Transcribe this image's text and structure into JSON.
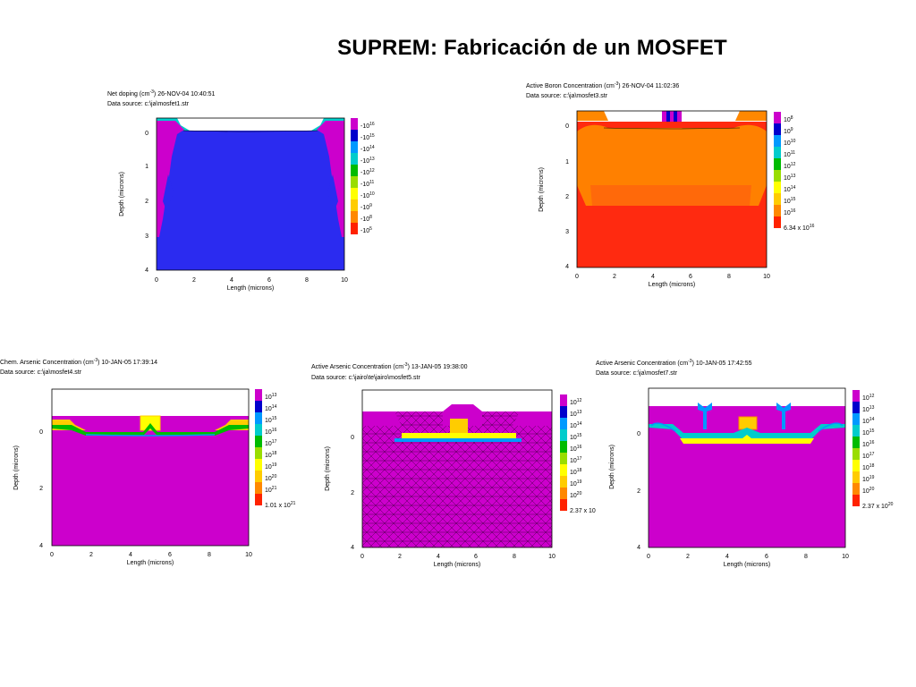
{
  "page": {
    "title": "SUPREM: Fabricación de un MOSFET"
  },
  "axis_labels": {
    "x": "Length (microns)",
    "y": "Depth (microns)"
  },
  "panels": [
    {
      "header_pre": "Net doping (cm",
      "header_exp": "-3",
      "header_post": ") 26-NOV-04 10:40:51",
      "source": "Data source: c:\\ja\\mosfet1.str",
      "x_ticks": [
        "0",
        "2",
        "4",
        "6",
        "8",
        "10"
      ],
      "y_ticks": [
        "0",
        "1",
        "2",
        "3",
        "4"
      ],
      "legend": [
        {
          "base": "-10",
          "exp": "16",
          "color": "#cc00cc"
        },
        {
          "base": "-10",
          "exp": "15",
          "color": "#0000cc"
        },
        {
          "base": "-10",
          "exp": "14",
          "color": "#0099ff"
        },
        {
          "base": "-10",
          "exp": "13",
          "color": "#00cccc"
        },
        {
          "base": "-10",
          "exp": "12",
          "color": "#00bb00"
        },
        {
          "base": "-10",
          "exp": "11",
          "color": "#99dd00"
        },
        {
          "base": "-10",
          "exp": "10",
          "color": "#ffff00"
        },
        {
          "base": "-10",
          "exp": "9",
          "color": "#ffcc00"
        },
        {
          "base": "-10",
          "exp": "8",
          "color": "#ff8800"
        },
        {
          "base": "-10",
          "exp": "5",
          "color": "#ff2200"
        }
      ],
      "legend_tail": null
    },
    {
      "header_pre": "Active Boron Concentration (cm",
      "header_exp": "-3",
      "header_post": ") 26-NOV-04 11:02:36",
      "source": "Data source: c:\\ja\\mosfet3.str",
      "x_ticks": [
        "0",
        "2",
        "4",
        "6",
        "8",
        "10"
      ],
      "y_ticks": [
        "0",
        "1",
        "2",
        "3",
        "4"
      ],
      "legend": [
        {
          "base": "10",
          "exp": "8",
          "color": "#cc00cc"
        },
        {
          "base": "10",
          "exp": "9",
          "color": "#0000cc"
        },
        {
          "base": "10",
          "exp": "10",
          "color": "#0099ff"
        },
        {
          "base": "10",
          "exp": "11",
          "color": "#00cccc"
        },
        {
          "base": "10",
          "exp": "12",
          "color": "#00bb00"
        },
        {
          "base": "10",
          "exp": "13",
          "color": "#99dd00"
        },
        {
          "base": "10",
          "exp": "14",
          "color": "#ffff00"
        },
        {
          "base": "10",
          "exp": "15",
          "color": "#ffcc00"
        },
        {
          "base": "10",
          "exp": "16",
          "color": "#ff8800"
        }
      ],
      "legend_tail": {
        "base": "6.34 x 10",
        "exp": "16",
        "color": "#ff2200"
      }
    },
    {
      "header_pre": "Chem. Arsenic Concentration (cm",
      "header_exp": "-3",
      "header_post": ") 10-JAN-05 17:39:14",
      "source": "Data source: c:\\ja\\mosfet4.str",
      "x_ticks": [
        "0",
        "2",
        "4",
        "6",
        "8",
        "10"
      ],
      "y_ticks": [
        "0",
        "2",
        "4"
      ],
      "legend": [
        {
          "base": "10",
          "exp": "13",
          "color": "#cc00cc"
        },
        {
          "base": "10",
          "exp": "14",
          "color": "#0000cc"
        },
        {
          "base": "10",
          "exp": "15",
          "color": "#0099ff"
        },
        {
          "base": "10",
          "exp": "16",
          "color": "#00cccc"
        },
        {
          "base": "10",
          "exp": "17",
          "color": "#00bb00"
        },
        {
          "base": "10",
          "exp": "18",
          "color": "#99dd00"
        },
        {
          "base": "10",
          "exp": "19",
          "color": "#ffff00"
        },
        {
          "base": "10",
          "exp": "20",
          "color": "#ffcc00"
        },
        {
          "base": "10",
          "exp": "21",
          "color": "#ff8800"
        }
      ],
      "legend_tail": {
        "base": "1.01 x 10",
        "exp": "21",
        "color": "#ff2200"
      }
    },
    {
      "header_pre": "Active Arsenic Concentration (cm",
      "header_exp": "-3",
      "header_post": ") 13-JAN-05 19:38:00",
      "source": "Data source: c:\\jairo\\te\\jairo\\mosfet5.str",
      "x_ticks": [
        "0",
        "2",
        "4",
        "6",
        "8",
        "10"
      ],
      "y_ticks": [
        "0",
        "2",
        "4"
      ],
      "legend": [
        {
          "base": "10",
          "exp": "12",
          "color": "#cc00cc"
        },
        {
          "base": "10",
          "exp": "13",
          "color": "#0000cc"
        },
        {
          "base": "10",
          "exp": "14",
          "color": "#0099ff"
        },
        {
          "base": "10",
          "exp": "15",
          "color": "#00cccc"
        },
        {
          "base": "10",
          "exp": "16",
          "color": "#00bb00"
        },
        {
          "base": "10",
          "exp": "17",
          "color": "#99dd00"
        },
        {
          "base": "10",
          "exp": "18",
          "color": "#ffff00"
        },
        {
          "base": "10",
          "exp": "19",
          "color": "#ffcc00"
        },
        {
          "base": "10",
          "exp": "20",
          "color": "#ff8800"
        }
      ],
      "legend_tail": {
        "base": "2.37 x 10",
        "exp": "",
        "color": "#ff2200"
      }
    },
    {
      "header_pre": "Active Arsenic Concentration (cm",
      "header_exp": "-3",
      "header_post": ") 10-JAN-05 17:42:55",
      "source": "Data source: c:\\ja\\mosfet7.str",
      "x_ticks": [
        "0",
        "2",
        "4",
        "6",
        "8",
        "10"
      ],
      "y_ticks": [
        "0",
        "2",
        "4"
      ],
      "legend": [
        {
          "base": "10",
          "exp": "12",
          "color": "#cc00cc"
        },
        {
          "base": "10",
          "exp": "13",
          "color": "#0000cc"
        },
        {
          "base": "10",
          "exp": "14",
          "color": "#0099ff"
        },
        {
          "base": "10",
          "exp": "15",
          "color": "#00cccc"
        },
        {
          "base": "10",
          "exp": "16",
          "color": "#00bb00"
        },
        {
          "base": "10",
          "exp": "17",
          "color": "#99dd00"
        },
        {
          "base": "10",
          "exp": "18",
          "color": "#ffff00"
        },
        {
          "base": "10",
          "exp": "19",
          "color": "#ffcc00"
        },
        {
          "base": "10",
          "exp": "20",
          "color": "#ff8800"
        }
      ],
      "legend_tail": {
        "base": "2.37 x 10",
        "exp": "20",
        "color": "#ff2200"
      }
    }
  ]
}
